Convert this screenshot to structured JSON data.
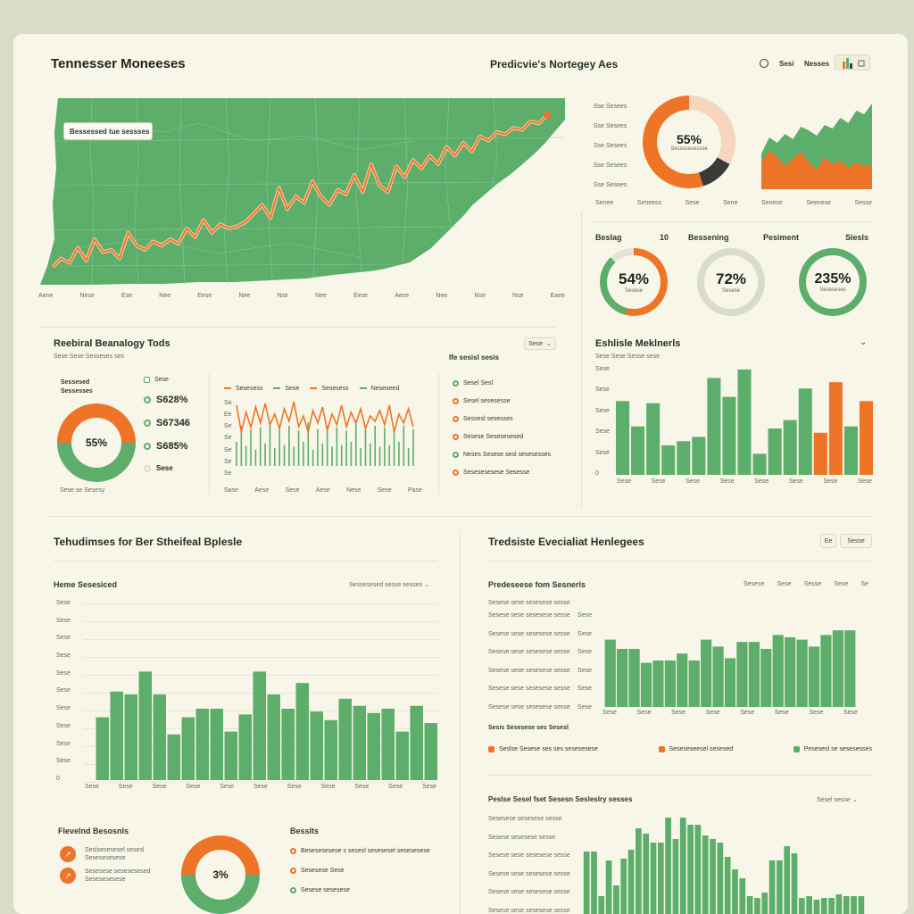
{
  "colors": {
    "green": "#5cae6a",
    "orange": "#ee7427",
    "peach": "#f6d6bc",
    "dark": "#3a3a36",
    "bg": "#f8f6e8"
  },
  "header": {
    "title": "Tennesser Moneeses",
    "subtitle": "Predicvie's Nortegey Aes",
    "toolbar": [
      "0",
      "Sesi",
      "Nesses"
    ],
    "chart_icon": "bar-chart-icon"
  },
  "map_panel": {
    "tooltip": "Bessessed tue sessses",
    "x_ticks": [
      "Aene",
      "Nese",
      "Ese",
      "Nee",
      "Eese",
      "Nee",
      "Nse",
      "Nee",
      "Eese",
      "Aese",
      "Nee",
      "Nse",
      "Nse",
      "Eaee"
    ]
  },
  "top_right": {
    "side_labels": [
      "Sse Sesees",
      "Sse Sesees",
      "Sse Sesees",
      "Sse Sesees",
      "Sse Sesees"
    ],
    "donut_value": "55%",
    "donut_label": "Sessssesessse",
    "bottom_labels": [
      "Senee",
      "Seneess",
      "Sese",
      "Sene",
      "Senese",
      "Seenese",
      "Sesse"
    ],
    "metric_labels": [
      "Beslag",
      "10",
      "Bessening",
      "Pesiment",
      "Siesls"
    ],
    "metrics": [
      {
        "value": "54%",
        "label": "Sesese"
      },
      {
        "value": "72%",
        "label": "Sesese"
      },
      {
        "value": "235%",
        "label": "Seseseses"
      }
    ]
  },
  "mid_left": {
    "title": "Reebiral Beanalogy Tods",
    "subtitle": "Sese Sese Sesseses ses",
    "dropdown": "Sese",
    "donut_header": "Sessesed\nSessesses",
    "donut_value": "55%",
    "donut_caption": "Sese se Sesesy",
    "kv": [
      {
        "value": "S628%",
        "color": "#5cae6a"
      },
      {
        "value": "S67346",
        "color": "#5cae6a"
      },
      {
        "value": "S685%",
        "color": "#5cae6a"
      },
      {
        "value": "Sese",
        "color": "#d8d9c8"
      }
    ],
    "kv_header": "Sese",
    "line_legend": [
      "Sesesess",
      "Sese",
      "Sesesess",
      "Neseseed"
    ],
    "line_yticks": [
      "Sa",
      "Ee",
      "Se",
      "Se",
      "Se",
      "Se",
      "Se"
    ],
    "line_xticks": [
      "Sase",
      "Aese",
      "Sese",
      "Aese",
      "Nese",
      "Sese",
      "Pase"
    ],
    "right_title": "Ife sesisl sesis",
    "right_items": [
      {
        "label": "Sesel Sesl",
        "color": "#5cae6a"
      },
      {
        "label": "Sesel sesesesse",
        "color": "#ee7427"
      },
      {
        "label": "Sessesl sesesses",
        "color": "#ee7427"
      },
      {
        "label": "Sesese Sesesesesed",
        "color": "#ee7427"
      },
      {
        "label": "Neses Sesese sesl sesesesses",
        "color": "#5cae6a"
      },
      {
        "label": "Sesesesesese Sesesse",
        "color": "#ee7427"
      }
    ]
  },
  "mid_right": {
    "title": "Eshlisle Meklnerls",
    "subtitle": "Sese Sese Sesse sese",
    "yticks": [
      "Sese",
      "Sese",
      "Sese",
      "Sese",
      "Sese",
      "0"
    ],
    "xticks": [
      "Sese",
      "Sese",
      "Sese",
      "Sese",
      "Sese",
      "Sese",
      "Sese",
      "Sese"
    ]
  },
  "lower_left": {
    "title": "Tehudimses for Ber Stheifeal Bplesle",
    "sub": "Heme Sesesiced",
    "dropdown": "Sessesesed sesse sesses",
    "yticks": [
      "Sese",
      "Sese",
      "Sese",
      "Sese",
      "Sese",
      "Sese",
      "Sese",
      "Sese",
      "Sese",
      "Sese",
      "0"
    ],
    "xticks": [
      "Sese",
      "Sese",
      "Sese",
      "Sese",
      "Sese",
      "Sese",
      "Sese",
      "Sese",
      "Sese",
      "Sese",
      "Sese"
    ]
  },
  "lower_right": {
    "title": "Tredsiste Evecialiat Henlegees",
    "buttons": [
      "Ee",
      "Sesse"
    ],
    "sub": "Predeseese fom Sesnerls",
    "top_controls": [
      "Sesese",
      "Sese",
      "Sesse",
      "Sese",
      "Se"
    ],
    "row_labels": [
      "Sesese sese sesesese sesse",
      "Sesese sese sesesese sesse",
      "Sesese sese sesesese sesse",
      "Sesese sese sesesese sesse",
      "Sesese sese sesesese sesse",
      "Sesese sese sesesese sesse"
    ],
    "row_ticks": [
      "Sese",
      "Sese",
      "Sese",
      "Sese",
      "Sese",
      "Sese"
    ],
    "xticks": [
      "Sese",
      "Sese",
      "Sese",
      "Sese",
      "Sese",
      "Sese",
      "Sese",
      "Sese"
    ],
    "legend_title": "Sesis Sesesese ses Sesesl",
    "legend": [
      {
        "label": "Seslse Sesese ses ses sesesesese",
        "color": "#ee7427"
      },
      {
        "label": "Seseseseesel sesesed",
        "color": "#ee7427"
      },
      {
        "label": "Pesesesl se sesesesses",
        "color": "#5cae6a"
      }
    ],
    "sub2": "Peslse Sesel fset Sesesn Sesleslry sesses",
    "dropdown2": "Sesel sesse",
    "rows2": [
      "Sesesese sesesese sesse",
      "Sesese sesesese sesse",
      "Sesese sese sesesese sesse",
      "Sesese sese sesesese sesse",
      "Sesese sese sesesese sesse",
      "Sesese sese sesesese sesse"
    ]
  },
  "bottom_left": {
    "title": "Flevelnd Besosnls",
    "items": [
      "Seslsesesesel sesesl\nSesesesesese",
      "Sesesese sesesesesed\nSesesesesese"
    ],
    "donut_value": "3%",
    "right_title": "Besslts",
    "right_items": [
      {
        "label": "Besesesesese s sesesl sesesesel sesesesese",
        "color": "#ee7427"
      },
      {
        "label": "Sesesese Sese",
        "color": "#ee7427"
      },
      {
        "label": "Sesese sesesese",
        "color": "#5cae6a"
      }
    ]
  },
  "chart_data": [
    {
      "type": "line",
      "title": "",
      "series": [
        {
          "values": [
            4,
            12,
            8,
            22,
            10,
            30,
            18,
            20,
            12,
            36,
            24,
            20,
            28,
            24,
            30,
            26,
            40,
            32,
            48,
            36,
            44,
            40,
            42,
            46,
            54,
            62,
            50,
            78,
            58,
            70,
            64,
            84,
            70,
            62,
            76,
            72,
            90,
            74,
            100,
            80,
            74,
            98,
            88,
            104,
            96,
            108,
            100,
            116,
            108,
            120,
            112,
            126,
            122,
            130,
            128,
            134,
            132,
            140,
            138,
            146
          ]
        }
      ]
    },
    {
      "type": "pie",
      "categories": [
        "orange",
        "dark",
        "green"
      ],
      "values": [
        55,
        12,
        33
      ]
    },
    {
      "type": "area",
      "series": [
        {
          "values": [
            40,
            58,
            52,
            62,
            56,
            70,
            66,
            60,
            72,
            68,
            80,
            74,
            88,
            84,
            96
          ]
        },
        {
          "values": [
            30,
            44,
            36,
            26,
            34,
            42,
            30,
            22,
            36,
            28,
            32,
            24,
            30,
            26,
            28
          ]
        }
      ]
    },
    {
      "type": "line",
      "series": [
        {
          "values": [
            70,
            40,
            62,
            45,
            68,
            50,
            72,
            48,
            60,
            44,
            66,
            52,
            74,
            46,
            58,
            40,
            64,
            50,
            68,
            42,
            60,
            48,
            70,
            46,
            62,
            50,
            66,
            44,
            58,
            52,
            64,
            48,
            70,
            40,
            60,
            50,
            66,
            46
          ]
        },
        {
          "values": [
            30,
            50,
            25,
            45,
            20,
            48,
            28,
            52,
            22,
            46,
            26,
            50,
            24,
            44,
            30,
            54,
            20,
            46,
            28,
            50,
            24,
            48,
            26,
            44,
            30,
            52,
            22,
            46,
            28,
            50,
            24,
            48,
            26,
            44,
            30,
            50,
            22,
            46
          ]
        }
      ]
    },
    {
      "type": "bar",
      "categories": [
        "1",
        "2",
        "3",
        "4",
        "5",
        "6",
        "7",
        "8",
        "9",
        "10",
        "11",
        "12",
        "13",
        "14",
        "15",
        "16",
        "17"
      ],
      "values": [
        70,
        46,
        68,
        28,
        32,
        36,
        92,
        74,
        100,
        20,
        44,
        52,
        82,
        40,
        88,
        46,
        70
      ],
      "orange_indices": [
        13,
        14,
        16
      ]
    },
    {
      "type": "bar",
      "categories": [
        "1",
        "2",
        "3",
        "4",
        "5",
        "6",
        "7",
        "8",
        "9",
        "10",
        "11",
        "12",
        "13",
        "14",
        "15",
        "16",
        "17",
        "18",
        "19",
        "20",
        "21",
        "22",
        "23",
        "24"
      ],
      "values": [
        44,
        62,
        60,
        76,
        60,
        32,
        44,
        50,
        50,
        34,
        46,
        76,
        60,
        50,
        68,
        48,
        42,
        57,
        52,
        47,
        50,
        34,
        52,
        40
      ]
    },
    {
      "type": "bar",
      "categories": [
        "1",
        "2",
        "3",
        "4",
        "5",
        "6",
        "7",
        "8",
        "9",
        "10",
        "11",
        "12",
        "13",
        "14",
        "15",
        "16",
        "17",
        "18",
        "19",
        "20",
        "21"
      ],
      "values": [
        58,
        50,
        50,
        38,
        40,
        40,
        46,
        40,
        58,
        52,
        42,
        56,
        56,
        50,
        62,
        60,
        58,
        52,
        62,
        66,
        66
      ]
    },
    {
      "type": "bar",
      "categories": [
        "1",
        "2",
        "3",
        "4",
        "5",
        "6",
        "7",
        "8",
        "9",
        "10",
        "11",
        "12",
        "13",
        "14",
        "15",
        "16",
        "17",
        "18",
        "19",
        "20",
        "21",
        "22",
        "23",
        "24",
        "25",
        "26",
        "27",
        "28",
        "29",
        "30",
        "31",
        "32",
        "33",
        "34",
        "35",
        "36",
        "37",
        "38"
      ],
      "values": [
        70,
        70,
        20,
        60,
        32,
        62,
        72,
        96,
        90,
        80,
        80,
        108,
        84,
        108,
        100,
        100,
        88,
        84,
        80,
        64,
        50,
        40,
        20,
        18,
        24,
        60,
        60,
        76,
        68,
        18,
        20,
        16,
        18,
        18,
        22,
        20,
        20,
        20
      ]
    },
    {
      "type": "pie",
      "categories": [
        "orange",
        "green"
      ],
      "values": [
        55,
        45
      ]
    }
  ]
}
